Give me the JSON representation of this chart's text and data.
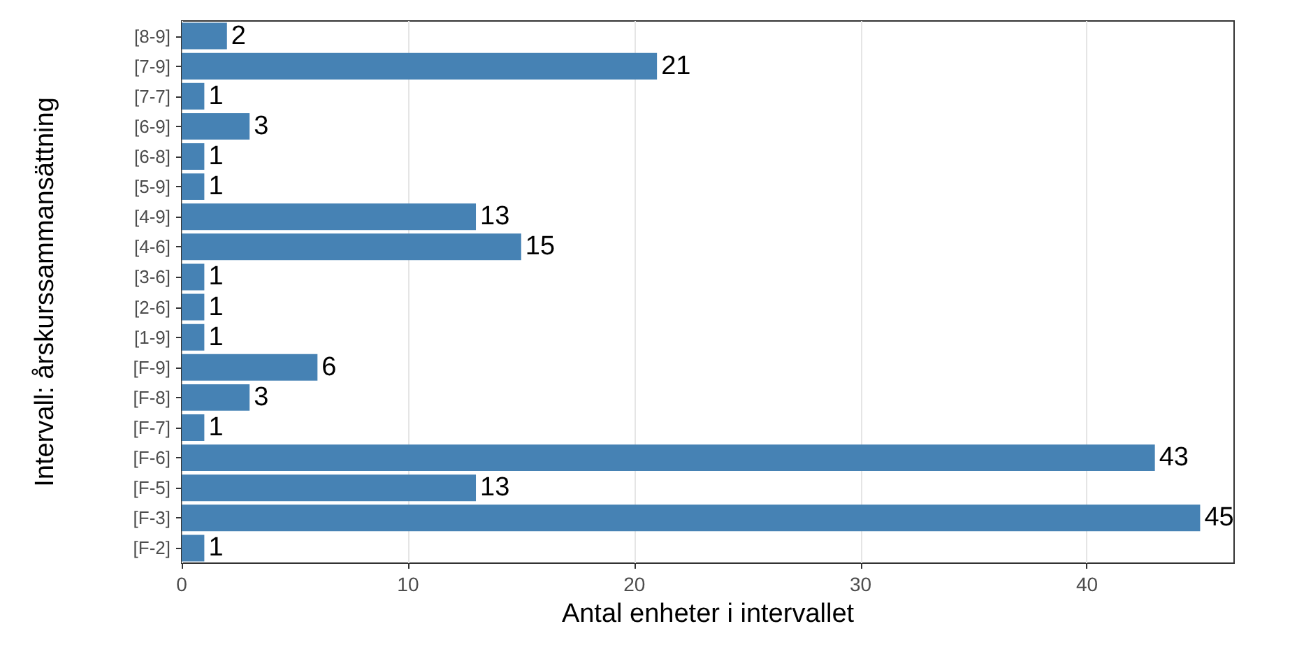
{
  "chart_data": {
    "type": "bar",
    "orientation": "horizontal",
    "xlabel": "Antal enheter i intervallet",
    "ylabel": "Intervall: årskurssammansättning",
    "categories": [
      "[8-9]",
      "[7-9]",
      "[7-7]",
      "[6-9]",
      "[6-8]",
      "[5-9]",
      "[4-9]",
      "[4-6]",
      "[3-6]",
      "[2-6]",
      "[1-9]",
      "[F-9]",
      "[F-8]",
      "[F-7]",
      "[F-6]",
      "[F-5]",
      "[F-3]",
      "[F-2]"
    ],
    "values": [
      2,
      21,
      1,
      3,
      1,
      1,
      13,
      15,
      1,
      1,
      1,
      6,
      3,
      1,
      43,
      13,
      45,
      1
    ],
    "color": "#4682b4",
    "xlim": [
      0,
      46.5
    ],
    "xticks": [
      0,
      10,
      20,
      30,
      40
    ],
    "grid": "x",
    "data_labels": true
  }
}
